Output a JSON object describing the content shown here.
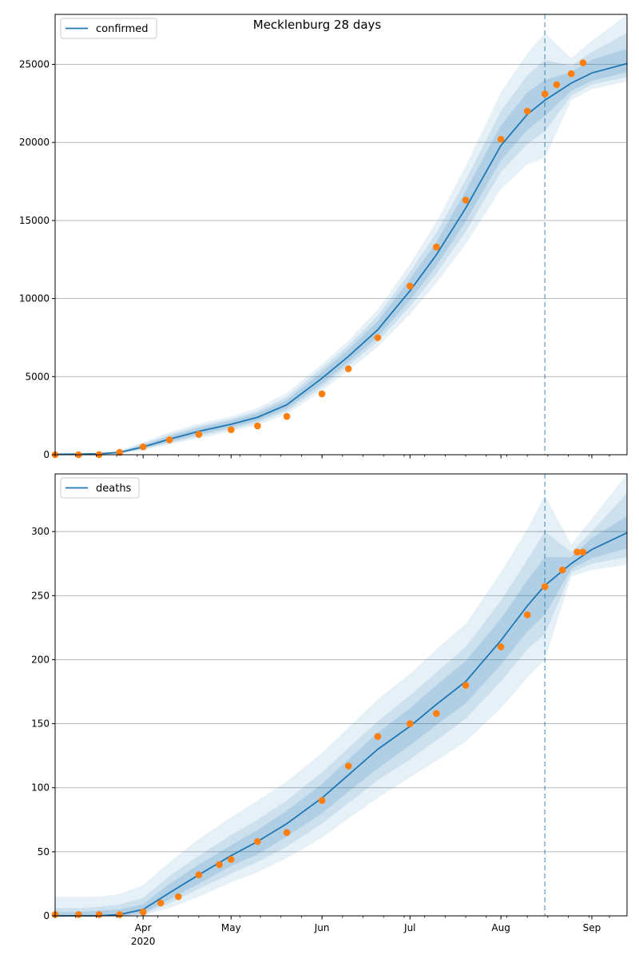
{
  "title": "Mecklenburg 28 days",
  "colors": {
    "model_line": "#1f77b4",
    "observed": "#ff7f0e",
    "band": "#1f77b4",
    "grid": "#b0b0b0",
    "forecast_line": "#1f77b4"
  },
  "chart_data": [
    {
      "type": "line",
      "panel": "top",
      "legend": "top-left",
      "series_name": "confirmed",
      "x_domain": [
        "2020-03-02",
        "2020-09-13"
      ],
      "ylim": [
        0,
        28200
      ],
      "yticks": [
        0,
        5000,
        10000,
        15000,
        20000,
        25000
      ],
      "ytick_labels": [
        "0",
        "5000",
        "10000",
        "15000",
        "20000",
        "25000"
      ],
      "grid": "horizontal",
      "forecast_start": "2020-08-16",
      "model": {
        "dates": [
          "2020-03-02",
          "2020-03-10",
          "2020-03-17",
          "2020-03-24",
          "2020-04-01",
          "2020-04-10",
          "2020-04-20",
          "2020-05-01",
          "2020-05-10",
          "2020-05-20",
          "2020-06-01",
          "2020-06-10",
          "2020-06-20",
          "2020-07-01",
          "2020-07-10",
          "2020-07-20",
          "2020-08-01",
          "2020-08-10",
          "2020-08-16",
          "2020-08-25",
          "2020-09-01",
          "2020-09-13"
        ],
        "values": [
          30,
          40,
          60,
          150,
          500,
          1000,
          1500,
          1950,
          2400,
          3200,
          4900,
          6300,
          8000,
          10500,
          12800,
          15800,
          19800,
          21800,
          22700,
          23800,
          24450,
          25050
        ],
        "bands": [
          {
            "lo": [
              0,
              0,
              0,
              60,
              300,
              650,
              1050,
              1500,
              1900,
              2600,
              4100,
              5400,
              6900,
              9000,
              11000,
              13500,
              17000,
              18600,
              19000,
              22700,
              23400,
              23900
            ],
            "hi": [
              60,
              80,
              130,
              280,
              800,
              1450,
              2000,
              2450,
              3000,
              3950,
              5800,
              7300,
              9300,
              12200,
              14900,
              18500,
              23200,
              25700,
              27000,
              25400,
              26500,
              28200
            ]
          },
          {
            "lo": [
              0,
              0,
              0,
              90,
              360,
              750,
              1180,
              1640,
              2050,
              2800,
              4350,
              5700,
              7250,
              9500,
              11600,
              14300,
              18100,
              19900,
              20700,
              23000,
              23700,
              24200
            ],
            "hi": [
              50,
              65,
              110,
              230,
              700,
              1300,
              1850,
              2300,
              2800,
              3700,
              5550,
              7000,
              8900,
              11700,
              14200,
              17600,
              22000,
              24300,
              25300,
              24900,
              25800,
              27000
            ]
          },
          {
            "lo": [
              5,
              10,
              15,
              110,
              410,
              830,
              1290,
              1760,
              2180,
              2960,
              4550,
              5930,
              7550,
              9900,
              12100,
              14950,
              18850,
              20800,
              21700,
              23300,
              23950,
              24500
            ],
            "hi": [
              45,
              55,
              95,
              200,
              620,
              1180,
              1730,
              2180,
              2650,
              3500,
              5300,
              6730,
              8550,
              11250,
              13600,
              16900,
              21100,
              23200,
              24000,
              24500,
              25300,
              26000
            ]
          }
        ]
      },
      "observed": {
        "dates": [
          "2020-03-02",
          "2020-03-10",
          "2020-03-17",
          "2020-03-24",
          "2020-04-01",
          "2020-04-10",
          "2020-04-20",
          "2020-05-01",
          "2020-05-10",
          "2020-05-20",
          "2020-06-01",
          "2020-06-10",
          "2020-06-20",
          "2020-07-01",
          "2020-07-10",
          "2020-07-20",
          "2020-08-01",
          "2020-08-10",
          "2020-08-16",
          "2020-08-20",
          "2020-08-25",
          "2020-08-29"
        ],
        "values": [
          0,
          0,
          10,
          150,
          500,
          950,
          1300,
          1600,
          1850,
          2450,
          3900,
          5500,
          7500,
          10800,
          13300,
          16300,
          20200,
          22000,
          23100,
          23700,
          24400,
          25100
        ]
      }
    },
    {
      "type": "line",
      "panel": "bottom",
      "legend": "top-left",
      "series_name": "deaths",
      "x_domain": [
        "2020-03-02",
        "2020-09-13"
      ],
      "ylim": [
        0,
        345
      ],
      "yticks": [
        0,
        50,
        100,
        150,
        200,
        250,
        300
      ],
      "ytick_labels": [
        "0",
        "50",
        "100",
        "150",
        "200",
        "250",
        "300"
      ],
      "grid": "horizontal",
      "forecast_start": "2020-08-16",
      "xtick_labels": [
        {
          "date": "2020-04-01",
          "label": "Apr",
          "sub": "2020"
        },
        {
          "date": "2020-05-01",
          "label": "May"
        },
        {
          "date": "2020-06-01",
          "label": "Jun"
        },
        {
          "date": "2020-07-01",
          "label": "Jul"
        },
        {
          "date": "2020-08-01",
          "label": "Aug"
        },
        {
          "date": "2020-09-01",
          "label": "Sep"
        }
      ],
      "model": {
        "dates": [
          "2020-03-02",
          "2020-03-10",
          "2020-03-17",
          "2020-03-24",
          "2020-04-01",
          "2020-04-10",
          "2020-04-20",
          "2020-05-01",
          "2020-05-10",
          "2020-05-20",
          "2020-06-01",
          "2020-06-10",
          "2020-06-20",
          "2020-07-01",
          "2020-07-10",
          "2020-07-20",
          "2020-08-01",
          "2020-08-10",
          "2020-08-16",
          "2020-08-25",
          "2020-09-01",
          "2020-09-13"
        ],
        "values": [
          0,
          0,
          0,
          1,
          5,
          18,
          32,
          47,
          58,
          72,
          92,
          110,
          130,
          148,
          165,
          183,
          215,
          242,
          258,
          275,
          286,
          299
        ],
        "bands": [
          {
            "lo": [
              0,
              0,
              0,
              0,
              0,
              6,
              15,
              26,
              34,
              45,
              61,
              76,
              92,
              108,
              121,
              136,
              162,
              186,
              200,
              265,
              270,
              274
            ],
            "hi": [
              15,
              15,
              15,
              17,
              24,
              42,
              60,
              77,
              90,
              105,
              127,
              147,
              169,
              189,
              208,
              228,
              268,
              302,
              328,
              290,
              310,
              345
            ]
          },
          {
            "lo": [
              0,
              0,
              0,
              0,
              1,
              10,
              21,
              33,
              42,
              54,
              72,
              88,
              106,
              122,
              137,
              154,
              183,
              208,
              220,
              268,
              275,
              280
            ],
            "hi": [
              6,
              6,
              7,
              9,
              14,
              31,
              47,
              63,
              75,
              90,
              112,
              131,
              152,
              172,
              190,
              210,
              246,
              278,
              300,
              284,
              300,
              330
            ]
          },
          {
            "lo": [
              0,
              0,
              0,
              0,
              2,
              13,
              25,
              39,
              48,
              62,
              80,
              97,
              115,
              133,
              149,
              166,
              196,
              222,
              235,
              271,
              279,
              287
            ],
            "hi": [
              3,
              3,
              4,
              5,
              9,
              25,
              40,
              55,
              67,
              82,
              103,
              122,
              143,
              162,
              180,
              199,
              232,
              262,
              280,
              280,
              295,
              312
            ]
          }
        ]
      },
      "observed": {
        "dates": [
          "2020-03-02",
          "2020-03-10",
          "2020-03-17",
          "2020-03-24",
          "2020-04-01",
          "2020-04-07",
          "2020-04-13",
          "2020-04-20",
          "2020-04-27",
          "2020-05-01",
          "2020-05-10",
          "2020-05-20",
          "2020-06-01",
          "2020-06-10",
          "2020-06-20",
          "2020-07-01",
          "2020-07-10",
          "2020-07-20",
          "2020-08-01",
          "2020-08-10",
          "2020-08-16",
          "2020-08-22",
          "2020-08-27",
          "2020-08-29"
        ],
        "values": [
          1,
          1,
          1,
          1,
          3,
          10,
          15,
          32,
          40,
          44,
          58,
          65,
          90,
          117,
          140,
          150,
          158,
          180,
          210,
          235,
          257,
          270,
          284,
          284
        ]
      }
    }
  ]
}
